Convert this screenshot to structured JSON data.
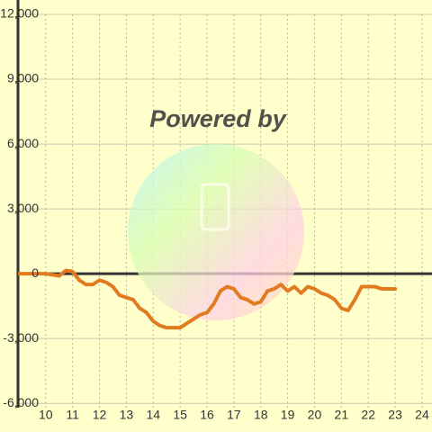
{
  "chart_data": {
    "type": "line",
    "watermark": "Powered by",
    "x": [
      9,
      9.5,
      10,
      10.5,
      10.75,
      11,
      11.25,
      11.5,
      11.75,
      12,
      12.25,
      12.5,
      12.75,
      13,
      13.25,
      13.5,
      13.75,
      14,
      14.25,
      14.5,
      14.75,
      15,
      15.25,
      15.5,
      15.75,
      16,
      16.25,
      16.5,
      16.75,
      17,
      17.25,
      17.5,
      17.75,
      18,
      18.25,
      18.5,
      18.75,
      19,
      19.25,
      19.5,
      19.75,
      20,
      20.25,
      20.5,
      20.75,
      21,
      21.25,
      21.5,
      21.75,
      22,
      22.25,
      22.5,
      22.75,
      23
    ],
    "series": [
      {
        "color": "#e07b20",
        "values": [
          0,
          0,
          0,
          -100,
          150,
          100,
          -300,
          -500,
          -500,
          -300,
          -400,
          -600,
          -1000,
          -1100,
          -1200,
          -1600,
          -1800,
          -2200,
          -2400,
          -2500,
          -2500,
          -2500,
          -2300,
          -2100,
          -1900,
          -1800,
          -1400,
          -800,
          -600,
          -700,
          -1100,
          -1200,
          -1400,
          -1300,
          -800,
          -700,
          -500,
          -800,
          -600,
          -900,
          -600,
          -700,
          -900,
          -1000,
          -1200,
          -1600,
          -1700,
          -1200,
          -600,
          -600,
          -600,
          -700,
          -700,
          -700
        ]
      }
    ],
    "xlim": [
      8.97,
      24.37
    ],
    "xticks": [
      10,
      11,
      12,
      13,
      14,
      15,
      16,
      17,
      18,
      19,
      20,
      21,
      22,
      23,
      24
    ],
    "ylim": [
      -6200,
      12000
    ],
    "yticks": [
      {
        "value": 12000,
        "label": "12,000"
      },
      {
        "value": 9000,
        "label": "9,000"
      },
      {
        "value": 6000,
        "label": "6,000"
      },
      {
        "value": 3000,
        "label": "3,000"
      },
      0,
      {
        "value": -3000,
        "label": "-3,000"
      },
      {
        "value": -6000,
        "label": "-6,000"
      }
    ],
    "grid": true
  }
}
